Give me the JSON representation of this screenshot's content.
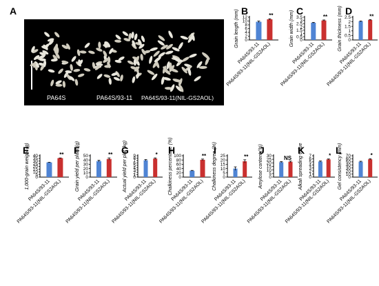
{
  "photo_panel": {
    "letter": "A",
    "labels": [
      "PA64S",
      "PA64S/93-11",
      "PA64S/93-11(NIL-GS2AOL)"
    ]
  },
  "colors": {
    "control": "#4f84d4",
    "nil": "#c9302f",
    "axis": "#000000"
  },
  "chart_data": [
    {
      "letter": "B",
      "type": "bar",
      "ylabel": "Grain length (mm)",
      "ylim": [
        0,
        12
      ],
      "ticks": [
        0,
        2,
        4,
        6,
        8,
        10,
        12
      ],
      "categories": [
        "PA64S/93-11",
        "PA64S/93-11(NIL-GS2AOL)"
      ],
      "values": [
        9.6,
        10.9
      ],
      "errors": [
        0.4,
        0.3
      ],
      "significance": "**"
    },
    {
      "letter": "C",
      "type": "bar",
      "ylabel": "Grain width (mm)",
      "ylim": [
        0,
        3.5
      ],
      "ticks": [
        0,
        0.5,
        1.0,
        1.5,
        2.0,
        2.5,
        3.0,
        3.5
      ],
      "categories": [
        "PA64S/93-11",
        "PA64S/93-11(NIL-GS2AOL)"
      ],
      "values": [
        2.65,
        3.0
      ],
      "errors": [
        0.06,
        0.08
      ],
      "significance": "**"
    },
    {
      "letter": "D",
      "type": "bar",
      "ylabel": "Grain thickness (mm)",
      "ylim": [
        0,
        2.5
      ],
      "ticks": [
        0,
        0.5,
        1.0,
        1.5,
        2.0,
        2.5
      ],
      "categories": [
        "PA64S/93-11",
        "PA64S/93-11(NIL-GS2AOL)"
      ],
      "values": [
        2.05,
        2.2
      ],
      "errors": [
        0.04,
        0.05
      ],
      "significance": "**"
    },
    {
      "letter": "E",
      "type": "bar",
      "ylabel": "1,000-grain weight (g)",
      "ylim": [
        0,
        40
      ],
      "ticks": [
        0,
        5,
        10,
        15,
        20,
        25,
        30,
        35,
        40
      ],
      "categories": [
        "PA64S/93-11",
        "PA64S/93-11(NIL-GS2AOL)"
      ],
      "values": [
        27.5,
        35.5
      ],
      "errors": [
        0.4,
        0.4
      ],
      "significance": "**"
    },
    {
      "letter": "F",
      "type": "bar",
      "ylabel": "Grain yield per plant (g)",
      "ylim": [
        0,
        50
      ],
      "ticks": [
        0,
        10,
        20,
        30,
        40,
        50
      ],
      "categories": [
        "PA64S/93-11",
        "PA64S/93-11(NIL-GS2AOL)"
      ],
      "values": [
        37.5,
        42.5
      ],
      "errors": [
        2.0,
        2.5
      ],
      "significance": "**"
    },
    {
      "letter": "G",
      "type": "bar",
      "ylabel": "Actual yield per plot (kg)",
      "ylim": [
        0,
        9
      ],
      "ticks": [
        0,
        1,
        2,
        3,
        4,
        5,
        6,
        7,
        8,
        9
      ],
      "categories": [
        "PA64S/93-11",
        "PA64S/93-11(NIL-GS2AOL)"
      ],
      "values": [
        7.1,
        7.8
      ],
      "errors": [
        0.3,
        0.3
      ],
      "significance": "*"
    },
    {
      "letter": "H",
      "type": "bar",
      "ylabel": "Chalkiness percentage (%)",
      "ylim": [
        0,
        100
      ],
      "ticks": [
        0,
        20,
        40,
        60,
        80,
        100
      ],
      "categories": [
        "PA64S/93-11",
        "PA64S/93-11(NIL-GS2AOL)"
      ],
      "values": [
        30,
        81
      ],
      "errors": [
        1.5,
        3.5
      ],
      "significance": "**"
    },
    {
      "letter": "I",
      "type": "bar",
      "ylabel": "Chalkiness degree (%)",
      "ylim": [
        0,
        25
      ],
      "ticks": [
        0,
        5,
        10,
        15,
        20,
        25
      ],
      "categories": [
        "PA64S/93-11",
        "PA64S/93-11(NIL-GS2AOL)"
      ],
      "values": [
        10,
        18.5
      ],
      "errors": [
        2.0,
        1.8
      ],
      "significance": "**"
    },
    {
      "letter": "J",
      "type": "bar",
      "ylabel": "Amylose content (%)",
      "ylim": [
        0,
        30
      ],
      "ticks": [
        0,
        5,
        10,
        15,
        20,
        25,
        30
      ],
      "categories": [
        "PA64S/93-11",
        "PA64S/93-11(NIL-GS2AOL)"
      ],
      "values": [
        21,
        21.5
      ],
      "errors": [
        0.8,
        1.0
      ],
      "significance": "NS"
    },
    {
      "letter": "K",
      "type": "bar",
      "ylabel": "Alkali spreading value",
      "ylim": [
        0,
        7
      ],
      "ticks": [
        0,
        1,
        2,
        3,
        4,
        5,
        6,
        7
      ],
      "categories": [
        "PA64S/93-11",
        "PA64S/93-11(NIL-GS2AOL)"
      ],
      "values": [
        5.1,
        5.8
      ],
      "errors": [
        0.2,
        0.15
      ],
      "significance": "*"
    },
    {
      "letter": "L",
      "type": "bar",
      "ylabel": "Gel consistency (mm)",
      "ylim": [
        0,
        70
      ],
      "ticks": [
        0,
        10,
        20,
        30,
        40,
        50,
        60,
        70
      ],
      "categories": [
        "PA64S/93-11",
        "PA64S/93-11(NIL-GS2AOL)"
      ],
      "values": [
        50.5,
        58.5
      ],
      "errors": [
        1.5,
        2.0
      ],
      "significance": "*"
    }
  ]
}
